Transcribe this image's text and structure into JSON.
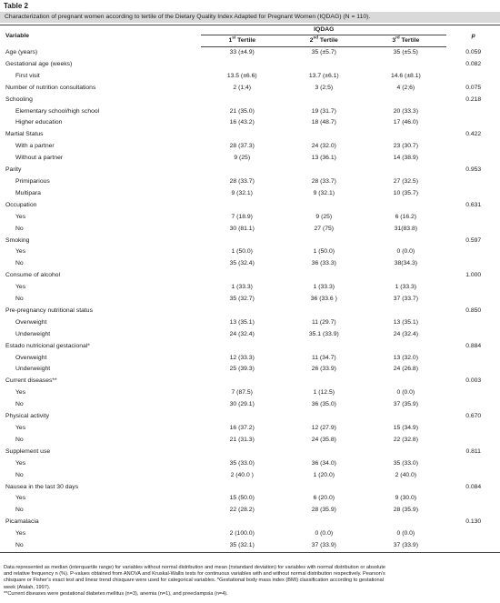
{
  "table_label": "Table 2",
  "caption": "Characterization of pregnant women according to tertile of the Dietary Quality Index Adapted for Pregnant Women (IQDAG) (N = 110).",
  "header": {
    "variable": "Variable",
    "group": "IQDAG",
    "t1_num": "1",
    "t1_sup": "st",
    "t1_rest": " Tertile",
    "t2_num": "2",
    "t2_sup": "nd",
    "t2_rest": " Tertile",
    "t3_num": "3",
    "t3_sup": "rd",
    "t3_rest": " Tertile",
    "p": "p"
  },
  "rows": [
    {
      "label": "Age (years)",
      "t1": "33 (±4.9)",
      "t2": "35 (±5.7)",
      "t3": "35 (±5.5)",
      "p": "0.059",
      "indent": false
    },
    {
      "label": "Gestational age (weeks)",
      "t1": "",
      "t2": "",
      "t3": "",
      "p": "0.082",
      "indent": false
    },
    {
      "label": "First visit",
      "t1": "13.5 (±6.6)",
      "t2": "13.7 (±6.1)",
      "t3": "14.6 (±8.1)",
      "p": "",
      "indent": true
    },
    {
      "label": "Number of nutrition consultations",
      "t1": "2 (1;4)",
      "t2": "3 (2;5)",
      "t3": "4 (2;6)",
      "p": "0.075",
      "indent": false
    },
    {
      "label": "Schooling",
      "t1": "",
      "t2": "",
      "t3": "",
      "p": "0.218",
      "indent": false
    },
    {
      "label": "Elementary school/high school",
      "t1": "21 (35.0)",
      "t2": "19 (31.7)",
      "t3": "20 (33.3)",
      "p": "",
      "indent": true
    },
    {
      "label": "Higher education",
      "t1": "16 (43.2)",
      "t2": "18 (48.7)",
      "t3": "17 (46.0)",
      "p": "",
      "indent": true
    },
    {
      "label": "Martial Status",
      "t1": "",
      "t2": "",
      "t3": "",
      "p": "0.422",
      "indent": false
    },
    {
      "label": "With a partner",
      "t1": "28 (37.3)",
      "t2": "24 (32.0)",
      "t3": "23 (30.7)",
      "p": "",
      "indent": true
    },
    {
      "label": "Without a partner",
      "t1": "9 (25)",
      "t2": "13 (36.1)",
      "t3": "14 (38.9)",
      "p": "",
      "indent": true
    },
    {
      "label": "Parity",
      "t1": "",
      "t2": "",
      "t3": "",
      "p": "0.953",
      "indent": false
    },
    {
      "label": "Primiparious",
      "t1": "28 (33.7)",
      "t2": "28 (33.7)",
      "t3": "27 (32.5)",
      "p": "",
      "indent": true
    },
    {
      "label": "Multipara",
      "t1": "9 (32.1)",
      "t2": "9 (32.1)",
      "t3": "10 (35.7)",
      "p": "",
      "indent": true
    },
    {
      "label": "Occupation",
      "t1": "",
      "t2": "",
      "t3": "",
      "p": "0.631",
      "indent": false
    },
    {
      "label": "Yes",
      "t1": "7 (18.9)",
      "t2": "9 (25)",
      "t3": "6 (16.2)",
      "p": "",
      "indent": true
    },
    {
      "label": "No",
      "t1": "30 (81.1)",
      "t2": "27 (75)",
      "t3": "31(83.8)",
      "p": "",
      "indent": true
    },
    {
      "label": "Smoking",
      "t1": "",
      "t2": "",
      "t3": "",
      "p": "0.597",
      "indent": false
    },
    {
      "label": "Yes",
      "t1": "1 (50.0)",
      "t2": "1 (50.0)",
      "t3": "0 (0.0)",
      "p": "",
      "indent": true
    },
    {
      "label": "No",
      "t1": "35 (32.4)",
      "t2": "36 (33.3)",
      "t3": "38(34.3)",
      "p": "",
      "indent": true
    },
    {
      "label": "Consume of alcohol",
      "t1": "",
      "t2": "",
      "t3": "",
      "p": "1.000",
      "indent": false
    },
    {
      "label": "Yes",
      "t1": "1 (33.3)",
      "t2": "1 (33.3)",
      "t3": "1 (33.3)",
      "p": "",
      "indent": true
    },
    {
      "label": "No",
      "t1": "35 (32.7)",
      "t2": "36 (33.6 )",
      "t3": "37 (33.7)",
      "p": "",
      "indent": true
    },
    {
      "label": "Pre-pregnancy nutritional status",
      "t1": "",
      "t2": "",
      "t3": "",
      "p": "0.850",
      "indent": false
    },
    {
      "label": "Overweight",
      "t1": "13 (35.1)",
      "t2": "11 (29.7)",
      "t3": "13 (35.1)",
      "p": "",
      "indent": true
    },
    {
      "label": "Underweight",
      "t1": "24 (32.4)",
      "t2": "35.1 (33.9)",
      "t3": "24 (32.4)",
      "p": "",
      "indent": true
    },
    {
      "label": "Estado nutricional gestacional*",
      "t1": "",
      "t2": "",
      "t3": "",
      "p": "0.884",
      "indent": false
    },
    {
      "label": "Overweight",
      "t1": "12 (33.3)",
      "t2": "11 (34.7)",
      "t3": "13 (32.0)",
      "p": "",
      "indent": true
    },
    {
      "label": "Underweight",
      "t1": "25 (39.3)",
      "t2": "26 (33.9)",
      "t3": "24 (26.8)",
      "p": "",
      "indent": true
    },
    {
      "label": "Current diseases**",
      "t1": "",
      "t2": "",
      "t3": "",
      "p": "0.003",
      "indent": false
    },
    {
      "label": "Yes",
      "t1": "7 (87.5)",
      "t2": "1 (12.5)",
      "t3": "0 (0.0)",
      "p": "",
      "indent": true
    },
    {
      "label": "No",
      "t1": "30 (29.1)",
      "t2": "36 (35.0)",
      "t3": "37 (35.9)",
      "p": "",
      "indent": true
    },
    {
      "label": "Physical activity",
      "t1": "",
      "t2": "",
      "t3": "",
      "p": "0.670",
      "indent": false
    },
    {
      "label": "Yes",
      "t1": "16 (37.2)",
      "t2": "12 (27.9)",
      "t3": "15 (34.9)",
      "p": "",
      "indent": true
    },
    {
      "label": "No",
      "t1": "21 (31.3)",
      "t2": "24 (35.8)",
      "t3": "22 (32.8)",
      "p": "",
      "indent": true
    },
    {
      "label": "Supplement use",
      "t1": "",
      "t2": "",
      "t3": "",
      "p": "0.811",
      "indent": false
    },
    {
      "label": "Yes",
      "t1": "35 (33.0)",
      "t2": "36 (34.0)",
      "t3": "35 (33.0)",
      "p": "",
      "indent": true
    },
    {
      "label": "No",
      "t1": "2 (40.0 )",
      "t2": "1 (20.0)",
      "t3": "2 (40.0)",
      "p": "",
      "indent": true
    },
    {
      "label": "Nausea in the last 30 days",
      "t1": "",
      "t2": "",
      "t3": "",
      "p": "0.084",
      "indent": false
    },
    {
      "label": "Yes",
      "t1": "15 (50.0)",
      "t2": "6 (20.0)",
      "t3": "9 (30.0)",
      "p": "",
      "indent": true
    },
    {
      "label": "No",
      "t1": "22 (28.2)",
      "t2": "28 (35.9)",
      "t3": "28 (35.9)",
      "p": "",
      "indent": true
    },
    {
      "label": "Picamalacia",
      "t1": "",
      "t2": "",
      "t3": "",
      "p": "0.130",
      "indent": false
    },
    {
      "label": "Yes",
      "t1": "2 (100.0)",
      "t2": "0 (0.0)",
      "t3": "0 (0.0)",
      "p": "",
      "indent": true
    },
    {
      "label": "No",
      "t1": "35 (32.1)",
      "t2": "37 (33.9)",
      "t3": "37 (33.9)",
      "p": "",
      "indent": true
    }
  ],
  "footnotes": [
    "Data represented as median (interquartile range) for variables without normal distribution and mean (±standard deviation) for variables with normal distribution or absolute",
    "and relative frequency n (%). P-values obtained from ANOVA and Kruskal-Wallis tests for continuous variables with and without normal distribution respectively. Pearson’s",
    "chisquare or Fisher’s exact test and linear trend chisquare were used for categorical variables. *Gestational body mass index (BMI) classification according to gestational",
    "week (Atalah, 1997).",
    "**Current diseases were gestational diabetes mellitus (n=3), anemia (n=1), and preeclampsia (n=4)."
  ]
}
